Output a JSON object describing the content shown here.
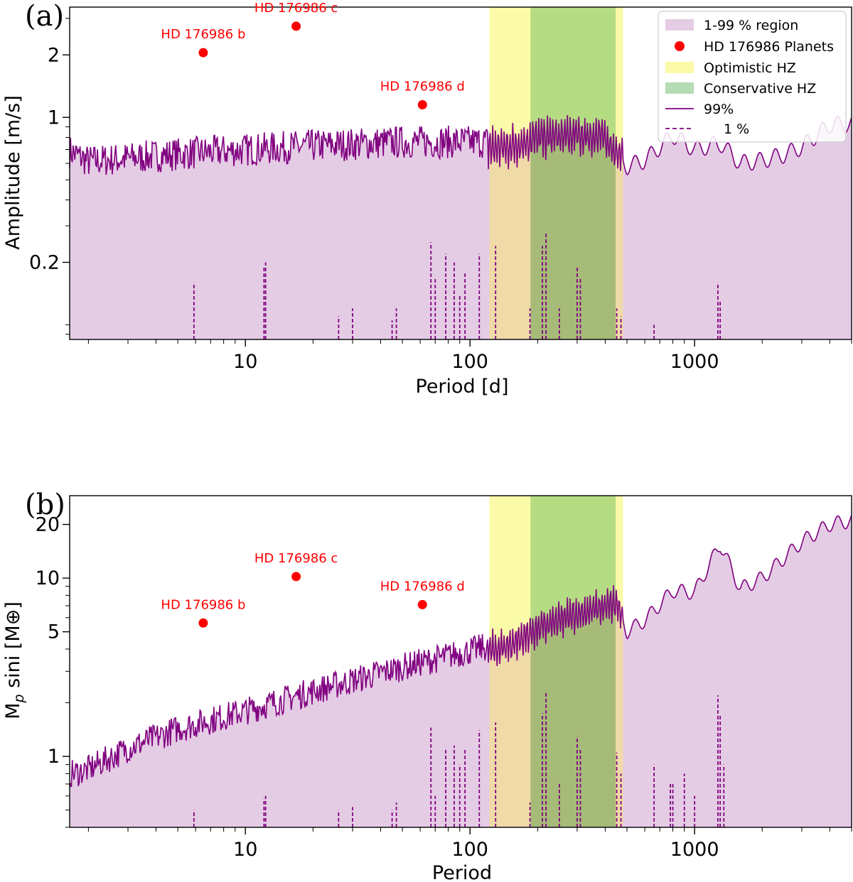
{
  "colors": {
    "region": "#e5cce5",
    "line": "#800080",
    "planet": "#ff0000",
    "optimistic": "#fafaa8",
    "conservative": "#b5dc82",
    "overlap_region_opt": "#efdaa8",
    "overlap_region_cons": "#a6bb78"
  },
  "chart_data": [
    {
      "panel": "(a)",
      "type": "line",
      "xlabel": "Period [d]",
      "ylabel": "Amplitude [m/s]",
      "xscale": "log",
      "yscale": "log",
      "xlim": [
        1.65,
        5000
      ],
      "ylim": [
        0.085,
        3.4
      ],
      "xticks": [
        {
          "v": 10,
          "label": "10"
        },
        {
          "v": 100,
          "label": "100"
        },
        {
          "v": 1000,
          "label": "1000"
        }
      ],
      "yticks": [
        {
          "v": 0.2,
          "label": "0.2"
        },
        {
          "v": 1,
          "label": "1"
        },
        {
          "v": 2,
          "label": "2"
        }
      ],
      "optimistic_hz": [
        122,
        480
      ],
      "conservative_hz": [
        186,
        445
      ],
      "upper_99": [
        [
          1.65,
          0.65
        ],
        [
          2,
          0.58
        ],
        [
          3,
          0.6
        ],
        [
          5,
          0.63
        ],
        [
          10,
          0.66
        ],
        [
          20,
          0.69
        ],
        [
          50,
          0.72
        ],
        [
          100,
          0.72
        ],
        [
          150,
          0.72
        ],
        [
          200,
          0.8
        ],
        [
          300,
          0.82
        ],
        [
          400,
          0.8
        ],
        [
          500,
          0.58
        ],
        [
          600,
          0.62
        ],
        [
          800,
          0.82
        ],
        [
          1000,
          0.7
        ],
        [
          1300,
          0.75
        ],
        [
          1600,
          0.6
        ],
        [
          2000,
          0.62
        ],
        [
          2500,
          0.66
        ],
        [
          3000,
          0.72
        ],
        [
          4000,
          0.92
        ],
        [
          5000,
          0.93
        ]
      ],
      "lower_1_spikes": [
        [
          5.9,
          0.16
        ],
        [
          12.1,
          0.19
        ],
        [
          12.3,
          0.2
        ],
        [
          26,
          0.11
        ],
        [
          30,
          0.12
        ],
        [
          45,
          0.105
        ],
        [
          47,
          0.12
        ],
        [
          67,
          0.25
        ],
        [
          70,
          0.17
        ],
        [
          78,
          0.22
        ],
        [
          85,
          0.2
        ],
        [
          90,
          0.14
        ],
        [
          95,
          0.18
        ],
        [
          110,
          0.22
        ],
        [
          130,
          0.24
        ],
        [
          185,
          0.12
        ],
        [
          210,
          0.24
        ],
        [
          218,
          0.28
        ],
        [
          250,
          0.12
        ],
        [
          300,
          0.19
        ],
        [
          310,
          0.17
        ],
        [
          450,
          0.12
        ],
        [
          470,
          0.11
        ],
        [
          660,
          0.1
        ],
        [
          1270,
          0.16
        ],
        [
          1300,
          0.13
        ]
      ],
      "planets": [
        {
          "name": "HD 176986 b",
          "period": 6.49,
          "value": 2.05
        },
        {
          "name": "HD 176986 c",
          "period": 16.82,
          "value": 2.75
        },
        {
          "name": "HD 176986 d",
          "period": 61.4,
          "value": 1.15
        }
      ],
      "legend": [
        {
          "kind": "region",
          "label": "1-99 % region"
        },
        {
          "kind": "planet",
          "label": "HD 176986 Planets"
        },
        {
          "kind": "optimistic",
          "label": "Optimistic HZ"
        },
        {
          "kind": "conservative",
          "label": "Conservative HZ"
        },
        {
          "kind": "solid",
          "label": "99%"
        },
        {
          "kind": "dashed",
          "label": "1 %"
        }
      ]
    },
    {
      "panel": "(b)",
      "type": "line",
      "xlabel": "Period",
      "ylabel": "M_p sini [M⊕]",
      "xscale": "log",
      "yscale": "log",
      "xlim": [
        1.65,
        5000
      ],
      "ylim": [
        0.4,
        29
      ],
      "xticks": [
        {
          "v": 10,
          "label": "10"
        },
        {
          "v": 100,
          "label": "100"
        },
        {
          "v": 1000,
          "label": "1000"
        }
      ],
      "yticks": [
        {
          "v": 1,
          "label": "1"
        },
        {
          "v": 5,
          "label": "5"
        },
        {
          "v": 10,
          "label": "10"
        },
        {
          "v": 20,
          "label": "20"
        }
      ],
      "optimistic_hz": [
        122,
        480
      ],
      "conservative_hz": [
        186,
        445
      ],
      "upper_99": [
        [
          1.65,
          0.75
        ],
        [
          2,
          0.8
        ],
        [
          3,
          1.05
        ],
        [
          5,
          1.35
        ],
        [
          10,
          1.7
        ],
        [
          20,
          2.2
        ],
        [
          50,
          3.0
        ],
        [
          100,
          3.7
        ],
        [
          150,
          4.2
        ],
        [
          200,
          5.2
        ],
        [
          300,
          6.3
        ],
        [
          450,
          7.2
        ],
        [
          500,
          5.0
        ],
        [
          600,
          5.8
        ],
        [
          800,
          8.5
        ],
        [
          1000,
          8.3
        ],
        [
          1300,
          15.5
        ],
        [
          1600,
          8.7
        ],
        [
          2000,
          10.0
        ],
        [
          3000,
          16.0
        ],
        [
          4000,
          20.0
        ],
        [
          5000,
          21.0
        ]
      ],
      "lower_1_spikes": [
        [
          5.9,
          0.5
        ],
        [
          12.1,
          0.58
        ],
        [
          12.3,
          0.6
        ],
        [
          26,
          0.5
        ],
        [
          30,
          0.52
        ],
        [
          45,
          0.5
        ],
        [
          47,
          0.55
        ],
        [
          67,
          1.45
        ],
        [
          70,
          0.6
        ],
        [
          78,
          1.1
        ],
        [
          85,
          1.15
        ],
        [
          90,
          0.9
        ],
        [
          95,
          1.1
        ],
        [
          110,
          1.4
        ],
        [
          130,
          1.55
        ],
        [
          185,
          0.55
        ],
        [
          210,
          1.75
        ],
        [
          218,
          2.3
        ],
        [
          250,
          0.7
        ],
        [
          300,
          1.3
        ],
        [
          310,
          1.1
        ],
        [
          450,
          1.05
        ],
        [
          470,
          0.8
        ],
        [
          660,
          0.9
        ],
        [
          780,
          0.7
        ],
        [
          800,
          0.7
        ],
        [
          900,
          0.8
        ],
        [
          1000,
          0.6
        ],
        [
          1270,
          2.2
        ],
        [
          1300,
          1.7
        ],
        [
          1350,
          0.9
        ]
      ],
      "planets": [
        {
          "name": "HD 176986 b",
          "period": 6.49,
          "value": 5.6
        },
        {
          "name": "HD 176986 c",
          "period": 16.82,
          "value": 10.2
        },
        {
          "name": "HD 176986 d",
          "period": 61.4,
          "value": 7.1
        }
      ]
    }
  ]
}
